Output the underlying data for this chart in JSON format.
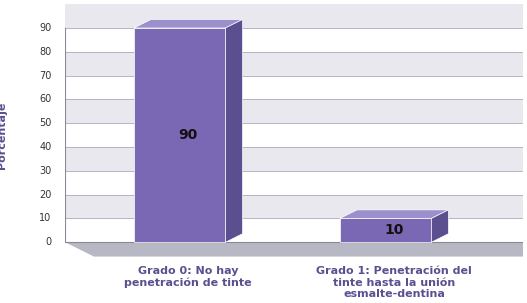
{
  "categories": [
    "Grado 0: No hay\npenetración de tinte",
    "Grado 1: Penetración del\ntinte hasta la unión\nesmalte-dentina"
  ],
  "values": [
    90,
    10
  ],
  "bar_color_front": "#7B68B5",
  "bar_color_side": "#5C4F90",
  "bar_color_top": "#9B8FCC",
  "ylabel": "Porcentaje",
  "ylim": [
    0,
    100
  ],
  "yticks": [
    0,
    10,
    20,
    30,
    40,
    50,
    60,
    70,
    80,
    90
  ],
  "bg_wall_light": "#F0F0F5",
  "bg_wall_dark": "#DCDCE8",
  "bg_floor": "#C8C8D0",
  "label_color": "#5C4F90",
  "value_label_fontsize": 10,
  "axis_label_fontsize": 8,
  "ylabel_fontsize": 8
}
